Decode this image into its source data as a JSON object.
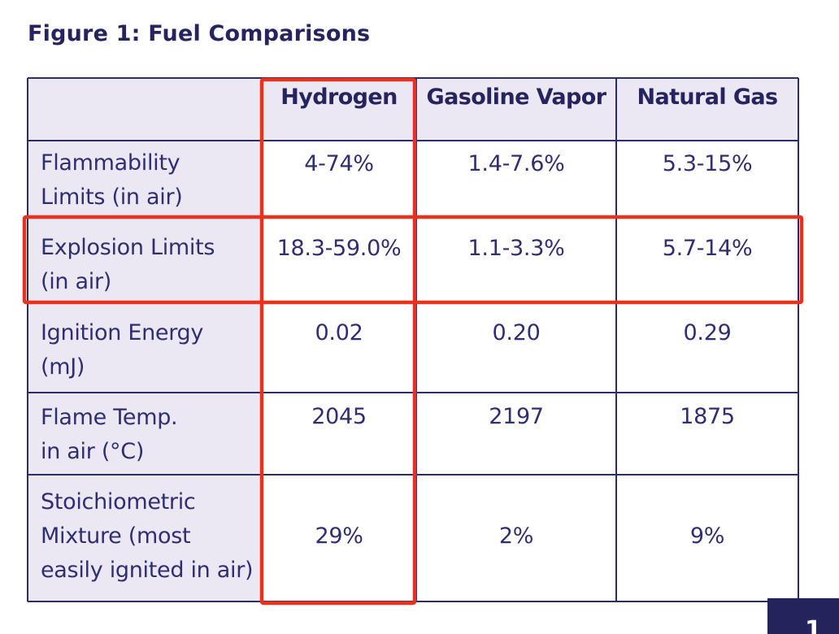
{
  "chart_data": {
    "type": "table",
    "title": "Figure 1: Fuel Comparisons",
    "columns": [
      "",
      "Hydrogen",
      "Gasoline Vapor",
      "Natural Gas"
    ],
    "rows": [
      {
        "label": "Flammability\nLimits (in air)",
        "values": [
          "4-74%",
          "1.4-7.6%",
          "5.3-15%"
        ]
      },
      {
        "label": "Explosion Limits\n(in air)",
        "values": [
          "18.3-59.0%",
          "1.1-3.3%",
          "5.7-14%"
        ]
      },
      {
        "label": "Ignition Energy\n(mJ)",
        "values": [
          "0.02",
          "0.20",
          "0.29"
        ]
      },
      {
        "label": "Flame Temp.\nin air (°C)",
        "values": [
          "2045",
          "2197",
          "1875"
        ]
      },
      {
        "label": "Stoichiometric\nMixture (most\neasily ignited in air)",
        "values": [
          "29%",
          "2%",
          "9%"
        ]
      }
    ],
    "highlights": [
      {
        "type": "column",
        "target": "Hydrogen",
        "color": "#e8321e"
      },
      {
        "type": "row",
        "target": "Explosion Limits (in air)",
        "color": "#e8321e"
      }
    ],
    "colors": {
      "header_bg": "#ebe7f3",
      "label_bg": "#ebe7f3",
      "border": "#2d2c6b",
      "text": "#2f2e72",
      "highlight": "#e8321e"
    }
  },
  "page_badge": "1"
}
